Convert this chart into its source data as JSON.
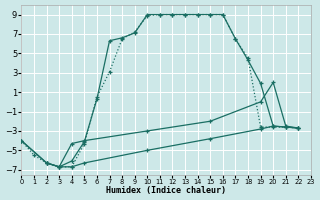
{
  "xlabel": "Humidex (Indice chaleur)",
  "bg_color": "#cde8e8",
  "grid_color": "#ffffff",
  "line_color": "#1a6e63",
  "xlim": [
    0,
    23
  ],
  "ylim": [
    -7.5,
    10.0
  ],
  "xticks": [
    0,
    1,
    2,
    3,
    4,
    5,
    6,
    7,
    8,
    9,
    10,
    11,
    12,
    13,
    14,
    15,
    16,
    17,
    18,
    19,
    20,
    21,
    22,
    23
  ],
  "yticks": [
    -7,
    -5,
    -3,
    -1,
    1,
    3,
    5,
    7,
    9
  ],
  "curves": [
    {
      "x": [
        0,
        1,
        2,
        3,
        4,
        5,
        6,
        7,
        8,
        9,
        10,
        11,
        12,
        13,
        14,
        15,
        16,
        17,
        18,
        19,
        20,
        21,
        22
      ],
      "y": [
        -4,
        -5.5,
        -6.3,
        -6.7,
        -6.7,
        -4.3,
        0.5,
        3.1,
        6.5,
        7.2,
        8.9,
        9.0,
        9.0,
        9.0,
        9.0,
        9.0,
        9.0,
        6.5,
        4.5,
        -2.6,
        -2.6,
        -2.6,
        -2.7
      ],
      "dotted": true
    },
    {
      "x": [
        2,
        3,
        4,
        5,
        6,
        7,
        8,
        9,
        10,
        11,
        12,
        13,
        14,
        15,
        16,
        17,
        18,
        19,
        20,
        21,
        22
      ],
      "y": [
        -6.3,
        -6.7,
        -6.1,
        -4.1,
        0.3,
        6.3,
        6.6,
        7.1,
        9.0,
        9.0,
        9.0,
        9.0,
        9.0,
        9.0,
        9.0,
        6.5,
        4.3,
        1.9,
        -2.5,
        -2.6,
        -2.7
      ],
      "dotted": false
    },
    {
      "x": [
        0,
        2,
        3,
        4,
        5,
        10,
        15,
        19,
        20,
        21,
        22
      ],
      "y": [
        -4.0,
        -6.3,
        -6.7,
        -4.3,
        -4.0,
        -3.0,
        -2.0,
        0.0,
        2.0,
        -2.5,
        -2.7
      ],
      "dotted": false
    },
    {
      "x": [
        0,
        2,
        3,
        4,
        5,
        10,
        15,
        19,
        20,
        21,
        22
      ],
      "y": [
        -4.0,
        -6.3,
        -6.7,
        -6.7,
        -6.3,
        -5.0,
        -3.8,
        -2.8,
        -2.5,
        -2.6,
        -2.7
      ],
      "dotted": false
    }
  ]
}
